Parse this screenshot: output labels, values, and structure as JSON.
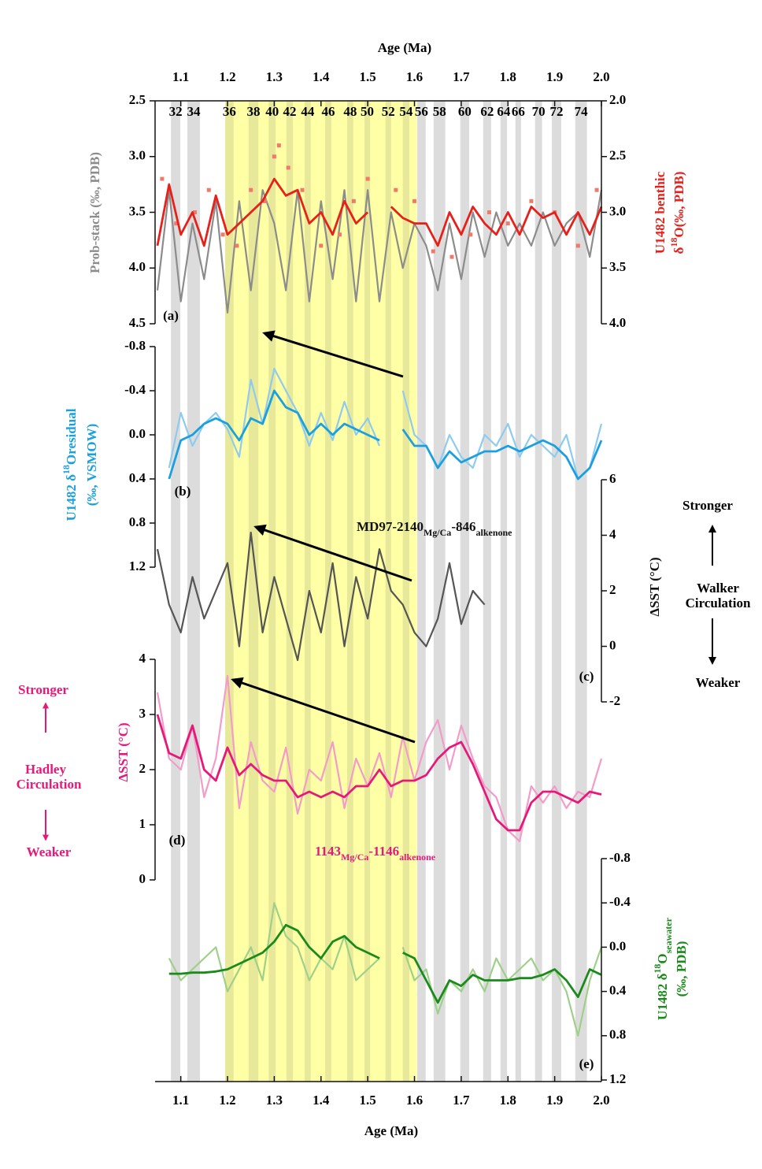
{
  "chart_data": {
    "type": "line",
    "xlabel": "Age (Ma)",
    "xlim": [
      1.045,
      2.0
    ],
    "xticks": [
      1.1,
      1.2,
      1.3,
      1.4,
      1.5,
      1.6,
      1.7,
      1.8,
      1.9,
      {
        "value": 2,
        "label": "2.0"
      }
    ],
    "highlight": [
      1.195,
      1.605
    ],
    "glacial_stages": [
      {
        "label": "32",
        "start": 1.079,
        "end": 1.099
      },
      {
        "label": "34",
        "start": 1.114,
        "end": 1.141
      },
      {
        "label": "36",
        "start": 1.195,
        "end": 1.213
      },
      {
        "label": "38",
        "start": 1.245,
        "end": 1.266
      },
      {
        "label": "40",
        "start": 1.288,
        "end": 1.303
      },
      {
        "label": "42",
        "start": 1.326,
        "end": 1.34
      },
      {
        "label": "44",
        "start": 1.365,
        "end": 1.378
      },
      {
        "label": "46",
        "start": 1.409,
        "end": 1.422
      },
      {
        "label": "48",
        "start": 1.456,
        "end": 1.469
      },
      {
        "label": "50",
        "start": 1.493,
        "end": 1.505
      },
      {
        "label": "52",
        "start": 1.538,
        "end": 1.55
      },
      {
        "label": "54",
        "start": 1.575,
        "end": 1.589
      },
      {
        "label": "56",
        "start": 1.606,
        "end": 1.624
      },
      {
        "label": "58",
        "start": 1.641,
        "end": 1.666
      },
      {
        "label": "60",
        "start": 1.698,
        "end": 1.717
      },
      {
        "label": "62",
        "start": 1.747,
        "end": 1.764
      },
      {
        "label": "64",
        "start": 1.784,
        "end": 1.798
      },
      {
        "label": "66",
        "start": 1.816,
        "end": 1.828
      },
      {
        "label": "70",
        "start": 1.858,
        "end": 1.873
      },
      {
        "label": "72",
        "start": 1.894,
        "end": 1.914
      },
      {
        "label": "74",
        "start": 1.944,
        "end": 1.969
      }
    ],
    "x": [
      1.05,
      1.075,
      1.1,
      1.125,
      1.15,
      1.175,
      1.2,
      1.225,
      1.25,
      1.275,
      1.3,
      1.325,
      1.35,
      1.375,
      1.4,
      1.425,
      1.45,
      1.475,
      1.5,
      1.525,
      1.55,
      1.575,
      1.6,
      1.625,
      1.65,
      1.675,
      1.7,
      1.725,
      1.75,
      1.775,
      1.8,
      1.825,
      1.85,
      1.875,
      1.9,
      1.925,
      1.95,
      1.975,
      2.0
    ],
    "panels": [
      {
        "label": "(a)",
        "ylabel": [
          [
            {
              "t": "Prob-stack (‰, PDB)"
            }
          ]
        ],
        "ycolor": "#8c8c8c",
        "ylim": [
          2.5,
          4.5
        ],
        "yinverted": true,
        "yticks": [
          2.5,
          {
            "value": 3,
            "label": "3.0"
          },
          3.5,
          {
            "value": 4,
            "label": "4.0"
          },
          4.5
        ],
        "y2label": [
          [
            {
              "t": "U1482 benthic"
            }
          ],
          [
            {
              "t": "δ"
            },
            {
              "sup": "18"
            },
            {
              "t": "O(‰, PDB)"
            }
          ]
        ],
        "y2color": "#e8201a",
        "y2lim": [
          2.0,
          4.0
        ],
        "y2inverted": true,
        "y2ticks": [
          {
            "value": 2,
            "label": "2.0"
          },
          2.5,
          {
            "value": 3,
            "label": "3.0"
          },
          3.5,
          {
            "value": 4,
            "label": "4.0"
          }
        ],
        "series": [
          {
            "color": "#8c8c8c",
            "values": [
              4.2,
              3.3,
              4.3,
              3.6,
              4.1,
              3.4,
              4.4,
              3.4,
              4.2,
              3.3,
              3.6,
              4.2,
              3.3,
              4.3,
              3.4,
              4.1,
              3.3,
              4.3,
              3.3,
              4.3,
              3.5,
              4.0,
              3.6,
              3.8,
              4.2,
              3.6,
              4.1,
              3.5,
              3.9,
              3.5,
              3.8,
              3.6,
              3.8,
              3.5,
              3.8,
              3.6,
              3.5,
              3.9,
              3.3
            ]
          },
          {
            "type": "scatter",
            "axis": "y2",
            "color": "#f07a6a",
            "x": [
              1.06,
              1.09,
              1.13,
              1.16,
              1.19,
              1.22,
              1.25,
              1.28,
              1.3,
              1.31,
              1.33,
              1.36,
              1.4,
              1.44,
              1.47,
              1.5,
              1.56,
              1.6,
              1.64,
              1.68,
              1.72,
              1.76,
              1.8,
              1.85,
              1.9,
              1.95,
              1.99
            ],
            "values": [
              2.7,
              3.1,
              3.0,
              2.8,
              3.2,
              3.3,
              2.8,
              2.9,
              2.5,
              2.4,
              2.6,
              2.8,
              3.3,
              3.2,
              2.9,
              2.7,
              2.8,
              2.9,
              3.35,
              3.4,
              3.2,
              3.0,
              3.1,
              2.9,
              3.0,
              3.3,
              2.8
            ]
          },
          {
            "axis": "y2",
            "color": "#e8201a",
            "values": [
              3.3,
              2.75,
              3.2,
              3.0,
              3.3,
              2.85,
              3.2,
              3.1,
              3.0,
              2.9,
              2.7,
              2.85,
              2.8,
              3.1,
              3.0,
              3.2,
              2.9,
              3.1,
              3.0,
              null,
              2.95,
              3.05,
              3.1,
              3.1,
              3.3,
              3.0,
              3.2,
              2.95,
              3.1,
              3.2,
              3.0,
              3.2,
              2.95,
              3.05,
              3.0,
              3.2,
              3.0,
              3.2,
              2.95
            ]
          }
        ]
      },
      {
        "label": "(b)",
        "ylabel": [
          [
            {
              "t": "U1482 δ"
            },
            {
              "sup": "18"
            },
            {
              "t": "Oresidual"
            }
          ],
          [
            {
              "t": "(‰, VSMOW)"
            }
          ]
        ],
        "ycolor": "#1a9fe0",
        "ylim": [
          -0.8,
          1.2
        ],
        "yinverted": true,
        "yticks": [
          -0.8,
          -0.4,
          {
            "value": 0,
            "label": "0.0"
          },
          0.4,
          0.8,
          1.2
        ],
        "series": [
          {
            "color": "#8ecbef",
            "values": [
              null,
              0.3,
              -0.2,
              0.1,
              -0.1,
              -0.2,
              -0.05,
              0.2,
              -0.5,
              -0.1,
              -0.6,
              -0.4,
              -0.2,
              0.1,
              -0.2,
              0.05,
              -0.3,
              0.0,
              -0.15,
              0.1,
              null,
              -0.4,
              0.0,
              0.1,
              0.3,
              0.0,
              0.2,
              0.3,
              0.0,
              0.1,
              -0.1,
              0.2,
              0.0,
              0.1,
              0.2,
              0.0,
              0.4,
              0.3,
              -0.1
            ]
          },
          {
            "color": "#1a9fe0",
            "values": [
              null,
              0.4,
              0.05,
              0.0,
              -0.1,
              -0.15,
              -0.1,
              0.05,
              -0.15,
              -0.1,
              -0.4,
              -0.25,
              -0.2,
              0.0,
              -0.1,
              0.0,
              -0.1,
              -0.05,
              0.0,
              0.05,
              null,
              -0.05,
              0.1,
              0.1,
              0.3,
              0.15,
              0.25,
              0.2,
              0.15,
              0.15,
              0.1,
              0.15,
              0.1,
              0.05,
              0.1,
              0.2,
              0.4,
              0.3,
              0.05
            ]
          }
        ]
      },
      {
        "label": "(c)",
        "annotation": [
          {
            "t": "MD97-2140"
          },
          {
            "sub": "Mg/Ca"
          },
          {
            "t": "-846"
          },
          {
            "sub": "alkenone"
          }
        ],
        "y2label": [
          [
            {
              "t": "ΔSST  (°C)"
            }
          ]
        ],
        "y2color": "#111111",
        "y2lim": [
          -2,
          6
        ],
        "y2inverted": false,
        "y2ticks": [
          6,
          4,
          2,
          0,
          -2
        ],
        "series": [
          {
            "axis": "y2",
            "color": "#555555",
            "values": [
              3.5,
              1.5,
              0.5,
              2.5,
              1.0,
              2.0,
              3.0,
              0.0,
              4.1,
              0.5,
              2.5,
              1.0,
              -0.5,
              2.0,
              0.5,
              3.0,
              0.0,
              2.5,
              1.0,
              3.5,
              2.0,
              1.5,
              0.5,
              0.0,
              1.0,
              3.0,
              0.8,
              2.0,
              1.5,
              null,
              null,
              null,
              null,
              null,
              null,
              null,
              null,
              null,
              null
            ]
          }
        ]
      },
      {
        "label": "(d)",
        "annotation": [
          {
            "t": "1143"
          },
          {
            "sub": "Mg/Ca"
          },
          {
            "t": "-1146"
          },
          {
            "sub": "alkenone"
          }
        ],
        "ylabel": [
          [
            {
              "t": "ΔSST (°C)"
            }
          ]
        ],
        "ycolor": "#e6197a",
        "ylim": [
          0,
          4
        ],
        "yinverted": false,
        "yticks": [
          4,
          3,
          2,
          1,
          0
        ],
        "series": [
          {
            "color": "#f39bc9",
            "values": [
              3.4,
              2.2,
              2.0,
              2.8,
              1.5,
              2.2,
              3.7,
              1.3,
              2.5,
              1.8,
              1.6,
              2.4,
              1.2,
              2.0,
              1.8,
              2.5,
              1.3,
              2.2,
              1.7,
              2.3,
              1.5,
              2.6,
              1.8,
              2.5,
              2.9,
              2.0,
              2.8,
              2.2,
              1.7,
              1.5,
              0.9,
              0.7,
              1.7,
              1.4,
              1.7,
              1.3,
              1.6,
              1.5,
              2.2
            ]
          },
          {
            "color": "#e6197a",
            "values": [
              3.0,
              2.3,
              2.2,
              2.8,
              2.0,
              1.8,
              2.4,
              1.9,
              2.1,
              1.9,
              1.8,
              1.8,
              1.5,
              1.6,
              1.5,
              1.6,
              1.5,
              1.7,
              1.7,
              2.0,
              1.7,
              1.8,
              1.8,
              1.9,
              2.2,
              2.4,
              2.5,
              2.1,
              1.6,
              1.1,
              0.9,
              0.9,
              1.4,
              1.6,
              1.6,
              1.5,
              1.4,
              1.6,
              1.55
            ]
          }
        ]
      },
      {
        "label": "(e)",
        "y2label": [
          [
            {
              "t": "U1482 δ"
            },
            {
              "sup": "18"
            },
            {
              "t": "O"
            },
            {
              "sub": "seawater"
            }
          ],
          [
            {
              "t": "(‰, PDB)"
            }
          ]
        ],
        "y2color": "#1a8a1a",
        "y2lim": [
          -0.8,
          1.2
        ],
        "y2inverted": true,
        "y2ticks": [
          -0.8,
          -0.4,
          {
            "value": 0,
            "label": "0.0"
          },
          0.4,
          0.8,
          1.2
        ],
        "series": [
          {
            "axis": "y2",
            "color": "#9fd08a",
            "values": [
              null,
              0.1,
              0.3,
              0.2,
              0.1,
              0.0,
              0.4,
              0.2,
              0.0,
              0.3,
              -0.4,
              -0.1,
              0.0,
              0.3,
              0.1,
              0.2,
              -0.1,
              0.3,
              0.2,
              0.1,
              null,
              0.0,
              0.3,
              0.2,
              0.6,
              0.3,
              0.4,
              0.2,
              0.4,
              0.1,
              0.3,
              0.2,
              0.1,
              0.3,
              0.2,
              0.4,
              0.8,
              0.3,
              0.0
            ]
          },
          {
            "axis": "y2",
            "color": "#1a8a1a",
            "values": [
              null,
              0.24,
              0.24,
              0.23,
              0.23,
              0.22,
              0.2,
              0.15,
              0.1,
              0.05,
              -0.05,
              -0.2,
              -0.15,
              0.0,
              0.1,
              -0.05,
              -0.1,
              0.0,
              0.05,
              0.1,
              null,
              0.05,
              0.1,
              0.3,
              0.5,
              0.3,
              0.35,
              0.25,
              0.3,
              0.3,
              0.3,
              0.28,
              0.28,
              0.25,
              0.2,
              0.3,
              0.45,
              0.2,
              0.25
            ]
          }
        ]
      }
    ],
    "walker": {
      "stronger": "Stronger",
      "label": [
        "Walker",
        "Circulation"
      ],
      "weaker": "Weaker"
    },
    "hadley": {
      "stronger": "Stronger",
      "label": [
        "Hadley",
        "Circulation"
      ],
      "weaker": "Weaker"
    }
  }
}
